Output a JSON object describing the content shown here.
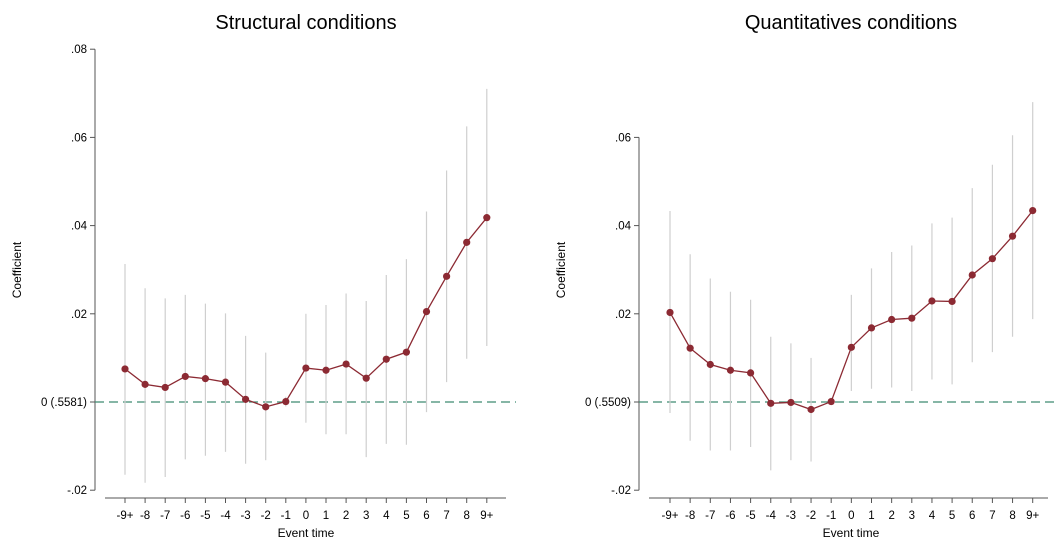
{
  "colors": {
    "series": "#8c2a33",
    "ci": "#cfcfcf",
    "baseline": "#3d8a72",
    "axis": "#555555"
  },
  "chart_data": [
    {
      "type": "line",
      "title": "Structural conditions",
      "xlabel": "Event time",
      "ylabel": "Coefficient",
      "categories": [
        "-9+",
        "-8",
        "-7",
        "-6",
        "-5",
        "-4",
        "-3",
        "-2",
        "-1",
        "0",
        "1",
        "2",
        "3",
        "4",
        "5",
        "6",
        "7",
        "8",
        "9+"
      ],
      "yticks": [
        {
          "value": -0.02,
          "label": "-.02"
        },
        {
          "value": 0,
          "label": "0 (.5581)"
        },
        {
          "value": 0.02,
          "label": ".02"
        },
        {
          "value": 0.04,
          "label": ".04"
        },
        {
          "value": 0.06,
          "label": ".06"
        },
        {
          "value": 0.08,
          "label": ".08"
        }
      ],
      "ylim": [
        -0.02,
        0.08
      ],
      "reference_line": 0,
      "series": [
        {
          "values": [
            0.0075,
            0.004,
            0.0033,
            0.0058,
            0.0053,
            0.0045,
            0.0006,
            -0.0011,
            0.0001,
            0.0077,
            0.0072,
            0.0086,
            0.0054,
            0.0097,
            0.0113,
            0.0205,
            0.0285,
            0.0362,
            0.0418
          ],
          "ci_low": [
            -0.0165,
            -0.0183,
            -0.017,
            -0.013,
            -0.0122,
            -0.0113,
            -0.014,
            -0.0132,
            -0.001,
            -0.0047,
            -0.0073,
            -0.0073,
            -0.0125,
            -0.0095,
            -0.0097,
            -0.0023,
            0.0045,
            0.0098,
            0.0127
          ],
          "ci_high": [
            0.0313,
            0.0258,
            0.0235,
            0.0243,
            0.0223,
            0.0201,
            0.015,
            0.0112,
            0.0012,
            0.02,
            0.022,
            0.0246,
            0.0229,
            0.0288,
            0.0324,
            0.0432,
            0.0525,
            0.0625,
            0.071
          ]
        }
      ]
    },
    {
      "type": "line",
      "title": "Quantitatives conditions",
      "xlabel": "Event time",
      "ylabel": "Coefficient",
      "categories": [
        "-9+",
        "-8",
        "-7",
        "-6",
        "-5",
        "-4",
        "-3",
        "-2",
        "-1",
        "0",
        "1",
        "2",
        "3",
        "4",
        "5",
        "6",
        "7",
        "8",
        "9+"
      ],
      "yticks": [
        {
          "value": -0.02,
          "label": "-.02"
        },
        {
          "value": 0,
          "label": "0 (.5509)"
        },
        {
          "value": 0.02,
          "label": ".02"
        },
        {
          "value": 0.04,
          "label": ".04"
        },
        {
          "value": 0.06,
          "label": ".06"
        }
      ],
      "ylim": [
        -0.02,
        0.08
      ],
      "reference_line": 0,
      "series": [
        {
          "values": [
            0.0203,
            0.0122,
            0.0085,
            0.0072,
            0.0066,
            -0.0003,
            -0.0001,
            -0.0017,
            0.0001,
            0.0124,
            0.0168,
            0.0187,
            0.019,
            0.0229,
            0.0228,
            0.0288,
            0.0325,
            0.0376,
            0.0434
          ],
          "ci_low": [
            -0.0025,
            -0.0088,
            -0.011,
            -0.011,
            -0.0102,
            -0.0155,
            -0.0132,
            -0.0135,
            -0.0007,
            0.0025,
            0.003,
            0.0033,
            0.0025,
            0.0051,
            0.004,
            0.009,
            0.0113,
            0.0148,
            0.0188
          ],
          "ci_high": [
            0.0433,
            0.0335,
            0.028,
            0.025,
            0.0232,
            0.0148,
            0.0133,
            0.01,
            0.001,
            0.0243,
            0.0303,
            0.034,
            0.0355,
            0.0405,
            0.0418,
            0.0485,
            0.0538,
            0.0605,
            0.068
          ]
        }
      ]
    }
  ]
}
